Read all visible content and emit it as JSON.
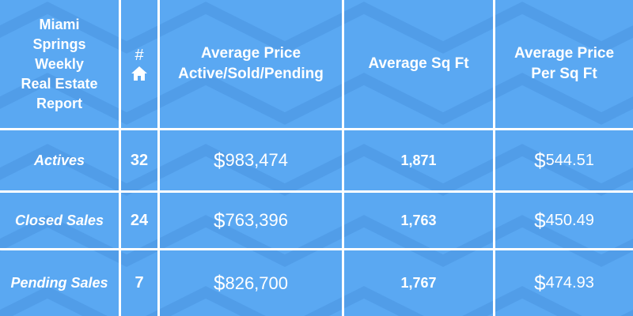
{
  "report": {
    "title_lines": [
      "Miami",
      "Springs",
      "Weekly",
      "Real Estate",
      "Report"
    ],
    "count_symbol": "#",
    "count_icon": "house-icon",
    "col_avg_price_lines": [
      "Average Price",
      "Active/Sold/Pending"
    ],
    "col_avg_sqft": "Average Sq Ft",
    "col_ppsf_lines": [
      "Average Price",
      "Per Sq Ft"
    ]
  },
  "rows": [
    {
      "label": "Actives",
      "count": "32",
      "avg_price": "983,474",
      "avg_sqft": "1,871",
      "ppsf": "544.51"
    },
    {
      "label": "Closed Sales",
      "count": "24",
      "avg_price": "763,396",
      "avg_sqft": "1,763",
      "ppsf": "450.49"
    },
    {
      "label": "Pending Sales",
      "count": "7",
      "avg_price": "826,700",
      "avg_sqft": "1,767",
      "ppsf": "474.93"
    }
  ],
  "currency_symbol": "$",
  "colors": {
    "background": "#5aa8f2",
    "chevron": "#4d9ae6",
    "text": "#ffffff",
    "grid": "#ffffff"
  }
}
